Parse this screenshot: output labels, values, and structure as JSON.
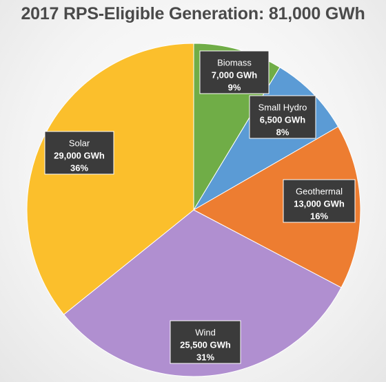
{
  "chart_data": {
    "type": "pie",
    "title": "2017 RPS-Eligible Generation: 81,000 GWh",
    "unit": "GWh",
    "total": 81000,
    "slices": [
      {
        "name": "Biomass",
        "value": 7000,
        "value_label": "7,000 GWh",
        "percent_label": "9%",
        "color": "#70ad47"
      },
      {
        "name": "Small Hydro",
        "value": 6500,
        "value_label": "6,500 GWh",
        "percent_label": "8%",
        "color": "#5b9bd5"
      },
      {
        "name": "Geothermal",
        "value": 13000,
        "value_label": "13,000 GWh",
        "percent_label": "16%",
        "color": "#ed7d31"
      },
      {
        "name": "Wind",
        "value": 25500,
        "value_label": "25,500 GWh",
        "percent_label": "31%",
        "color": "#b08fd0"
      },
      {
        "name": "Solar",
        "value": 29000,
        "value_label": "29,000 GWh",
        "percent_label": "36%",
        "color": "#fbbf2c"
      }
    ],
    "start_angle": "12 o'clock",
    "direction": "clockwise",
    "legend": "none",
    "data_labels": "dark callout boxes with name, value and percent"
  }
}
